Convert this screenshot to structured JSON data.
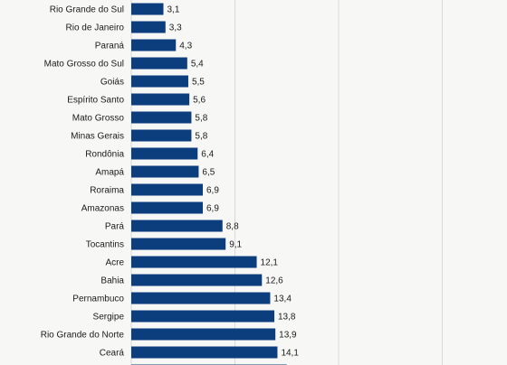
{
  "chart_data": {
    "type": "bar",
    "orientation": "horizontal",
    "categories": [
      "Rio Grande do Sul",
      "Rio de Janeiro",
      "Paraná",
      "Mato Grosso do Sul",
      "Goiás",
      "Espírito Santo",
      "Mato Grosso",
      "Minas Gerais",
      "Rondônia",
      "Amapá",
      "Roraima",
      "Amazonas",
      "Pará",
      "Tocantins",
      "Acre",
      "Bahia",
      "Pernambuco",
      "Sergipe",
      "Rio Grande do Norte",
      "Ceará",
      ""
    ],
    "values": [
      3.1,
      3.3,
      4.3,
      5.4,
      5.5,
      5.6,
      5.8,
      5.8,
      6.4,
      6.5,
      6.9,
      6.9,
      8.8,
      9.1,
      12.1,
      12.6,
      13.4,
      13.8,
      13.9,
      14.1,
      15.0
    ],
    "value_labels": [
      "3,1",
      "3,3",
      "4,3",
      "5,4",
      "5,5",
      "5,6",
      "5,8",
      "5,8",
      "6,4",
      "6,5",
      "6,9",
      "6,9",
      "8,8",
      "9,1",
      "12,1",
      "12,6",
      "13,4",
      "13,8",
      "13,9",
      "14,1",
      ""
    ],
    "xlim": [
      0,
      30
    ],
    "gridlines_x": [
      0,
      10,
      20,
      30
    ],
    "grid": true,
    "bar_color": "#0c3d7d",
    "grid_color": "#d9d9d9",
    "title": "",
    "xlabel": "",
    "ylabel": ""
  }
}
